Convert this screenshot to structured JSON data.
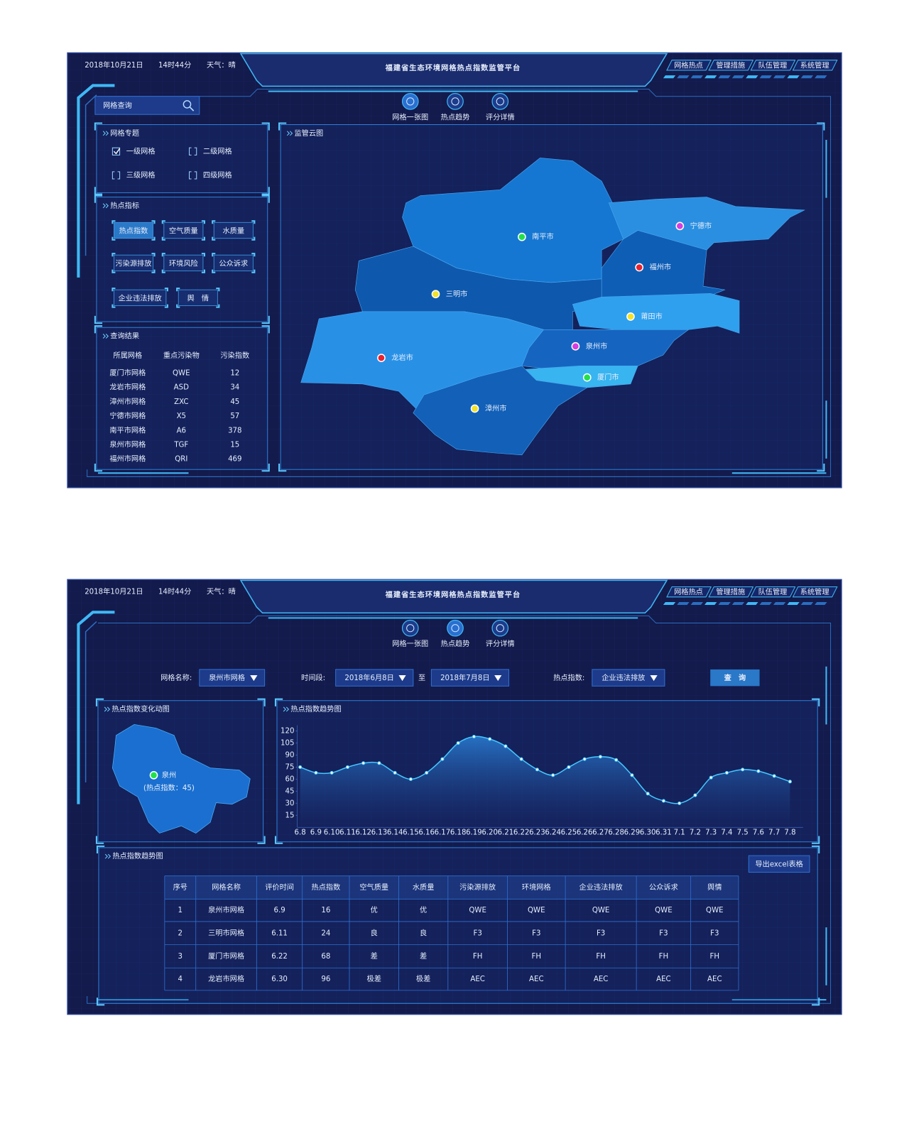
{
  "screens": [
    {
      "header": {
        "date": "2018年10月21日",
        "time": "14时44分",
        "weather": "天气：晴",
        "title": "福建省生态环境网格热点指数监管平台",
        "nav": [
          "网格热点",
          "管理措施",
          "队伍管理",
          "系统管理"
        ]
      },
      "tabs": [
        "网格一张图",
        "热点趋势",
        "评分详情"
      ],
      "active_tab": 0,
      "search_placeholder": "网格查询",
      "topic_panel": {
        "title": "网格专题",
        "options": [
          "一级网格",
          "二级网格",
          "三级网格",
          "四级网格"
        ],
        "checked": [
          true,
          false,
          false,
          false
        ]
      },
      "indicator_panel": {
        "title": "热点指标",
        "buttons": [
          "热点指数",
          "空气质量",
          "水质量",
          "污染源排放",
          "环境风险",
          "公众诉求",
          "企业违法排放",
          "舆　情"
        ],
        "active_button": 0
      },
      "result_panel": {
        "title": "查询结果",
        "columns": [
          "所属网格",
          "重点污染物",
          "污染指数"
        ],
        "rows": [
          [
            "厦门市网格",
            "QWE",
            12
          ],
          [
            "龙岩市网格",
            "ASD",
            34
          ],
          [
            "漳州市网格",
            "ZXC",
            45
          ],
          [
            "宁德市网格",
            "X5",
            57
          ],
          [
            "南平市网格",
            "A6",
            378
          ],
          [
            "泉州市网格",
            "TGF",
            15
          ],
          [
            "福州市网格",
            "QRI",
            469
          ]
        ]
      },
      "map_panel": {
        "title": "监管云图",
        "cities": [
          {
            "name": "南平市",
            "color": "#22e04a"
          },
          {
            "name": "宁德市",
            "color": "#d63ce0"
          },
          {
            "name": "福州市",
            "color": "#e8232f"
          },
          {
            "name": "三明市",
            "color": "#f3e12a"
          },
          {
            "name": "莆田市",
            "color": "#f3e12a"
          },
          {
            "name": "龙岩市",
            "color": "#e8232f"
          },
          {
            "name": "泉州市",
            "color": "#d63ce0"
          },
          {
            "name": "厦门市",
            "color": "#22e04a"
          },
          {
            "name": "漳州市",
            "color": "#f3e12a"
          }
        ]
      }
    },
    {
      "header": {
        "date": "2018年10月21日",
        "time": "14时44分",
        "weather": "天气：晴",
        "title": "福建省生态环境网格热点指数监管平台",
        "nav": [
          "网格热点",
          "管理措施",
          "队伍管理",
          "系统管理"
        ]
      },
      "tabs": [
        "网格一张图",
        "热点趋势",
        "评分详情"
      ],
      "active_tab": 1,
      "filters": {
        "grid_label": "网格名称:",
        "grid_value": "泉州市网格",
        "period_label": "时间段:",
        "start": "2018年6月8日",
        "to": "至",
        "end": "2018年7月8日",
        "index_label": "热点指数:",
        "index_value": "企业违法排放",
        "query": "查　询"
      },
      "mini_map": {
        "title": "热点指数变化动图",
        "city": "泉州",
        "note": "(热点指数：45)",
        "color": "#22e04a"
      },
      "chart_data": {
        "type": "line",
        "title": "热点指数趋势图",
        "area": true,
        "color": "#43c8ff",
        "categories": [
          "6.8",
          "6.9",
          "6.10",
          "6.11",
          "6.12",
          "6.13",
          "6.14",
          "6.15",
          "6.16",
          "6.17",
          "6.18",
          "6.19",
          "6.20",
          "6.21",
          "6.22",
          "6.23",
          "6.24",
          "6.25",
          "6.26",
          "6.27",
          "6.28",
          "6.29",
          "6.30",
          "6.31",
          "7.1",
          "7.2",
          "7.3",
          "7.4",
          "7.5",
          "7.6",
          "7.7",
          "7.8"
        ],
        "values": [
          75,
          68,
          68,
          75,
          80,
          80,
          68,
          60,
          68,
          85,
          105,
          113,
          110,
          101,
          85,
          72,
          65,
          75,
          85,
          88,
          84,
          65,
          42,
          33,
          30,
          40,
          62,
          68,
          72,
          70,
          64,
          57
        ],
        "ylim": [
          0,
          120
        ],
        "yticks": [
          15,
          30,
          45,
          60,
          75,
          90,
          105,
          120
        ]
      },
      "table_panel": {
        "title": "热点指数趋势图",
        "export": "导出excel表格",
        "columns": [
          "序号",
          "网格名称",
          "评价时间",
          "热点指数",
          "空气质量",
          "水质量",
          "污染源排放",
          "环境网格",
          "企业违法排放",
          "公众诉求",
          "舆情"
        ],
        "rows": [
          {
            "color": "#33e34a",
            "cells": [
              1,
              "泉州市网格",
              "6.9",
              16,
              "优",
              "优",
              "QWE",
              "QWE",
              "QWE",
              "QWE",
              "QWE"
            ]
          },
          {
            "color": "#f3e12a",
            "cells": [
              2,
              "三明市网格",
              "6.11",
              24,
              "良",
              "良",
              "F3",
              "F3",
              "F3",
              "F3",
              "F3"
            ]
          },
          {
            "color": "#d63ce0",
            "cells": [
              3,
              "厦门市网格",
              "6.22",
              68,
              "差",
              "差",
              "FH",
              "FH",
              "FH",
              "FH",
              "FH"
            ]
          },
          {
            "color": "#e8232f",
            "cells": [
              4,
              "龙岩市网格",
              "6.30",
              96,
              "极差",
              "极差",
              "AEC",
              "AEC",
              "AEC",
              "AEC",
              "AEC"
            ]
          }
        ]
      }
    }
  ]
}
